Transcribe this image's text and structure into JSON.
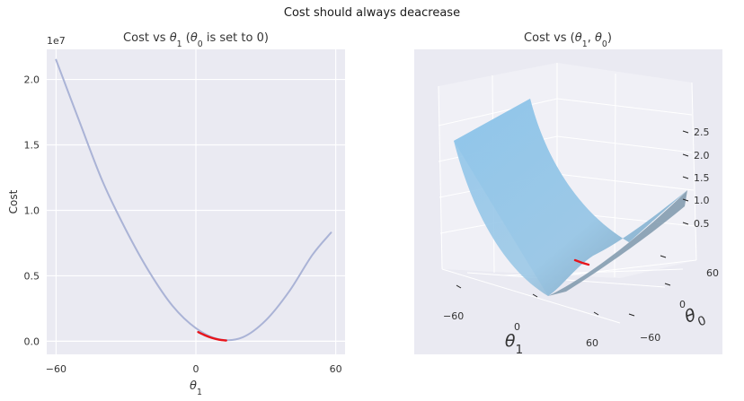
{
  "figure": {
    "suptitle": "Cost should always deacrease"
  },
  "chart_data": [
    {
      "type": "line",
      "title_parts": {
        "pre": "Cost vs ",
        "sym": "θ",
        "sub": "1",
        "post1": " (",
        "sym2": "θ",
        "sub2": "0",
        "post2": " is set to 0)"
      },
      "xlabel": {
        "sym": "θ",
        "sub": "1"
      },
      "ylabel": "Cost",
      "y_offset_label": "1e7",
      "xlim": [
        -64,
        64
      ],
      "ylim": [
        -0.1,
        2.23
      ],
      "x_ticks": [
        -60,
        0,
        60
      ],
      "y_ticks": [
        0.0,
        0.5,
        1.0,
        1.5,
        2.0
      ],
      "y_tick_labels": [
        "0.0",
        "0.5",
        "1.0",
        "1.5",
        "2.0"
      ],
      "grid": true,
      "series": [
        {
          "color": "#aab3d6",
          "x": [
            -60,
            -50,
            -40,
            -30,
            -20,
            -10,
            0,
            10,
            20,
            30,
            40,
            50,
            58
          ],
          "y": [
            2.15,
            1.68,
            1.22,
            0.85,
            0.53,
            0.27,
            0.1,
            0.015,
            0.03,
            0.16,
            0.38,
            0.66,
            0.83
          ]
        },
        {
          "color": "#e8141b",
          "x": [
            1,
            4,
            7,
            10,
            13
          ],
          "y": [
            0.07,
            0.045,
            0.025,
            0.012,
            0.006
          ]
        }
      ]
    },
    {
      "type": "surface3d",
      "title_parts": {
        "pre": "Cost vs (",
        "sym": "θ",
        "sub": "1",
        "mid": ", ",
        "sym2": "θ",
        "sub2": "0",
        "post": ")"
      },
      "xlabel": {
        "sym": "θ",
        "sub": "1"
      },
      "ylabel": {
        "sym": "θ",
        "sub": "0"
      },
      "x_ticks": [
        "−60",
        "0",
        "60"
      ],
      "y_ticks": [
        "60",
        "0",
        "−60"
      ],
      "z_ticks": [
        "0.5",
        "1.0",
        "1.5",
        "2.0",
        "2.5"
      ],
      "surface_color": "#8ec5ea",
      "path_color": "#e8141b"
    }
  ]
}
